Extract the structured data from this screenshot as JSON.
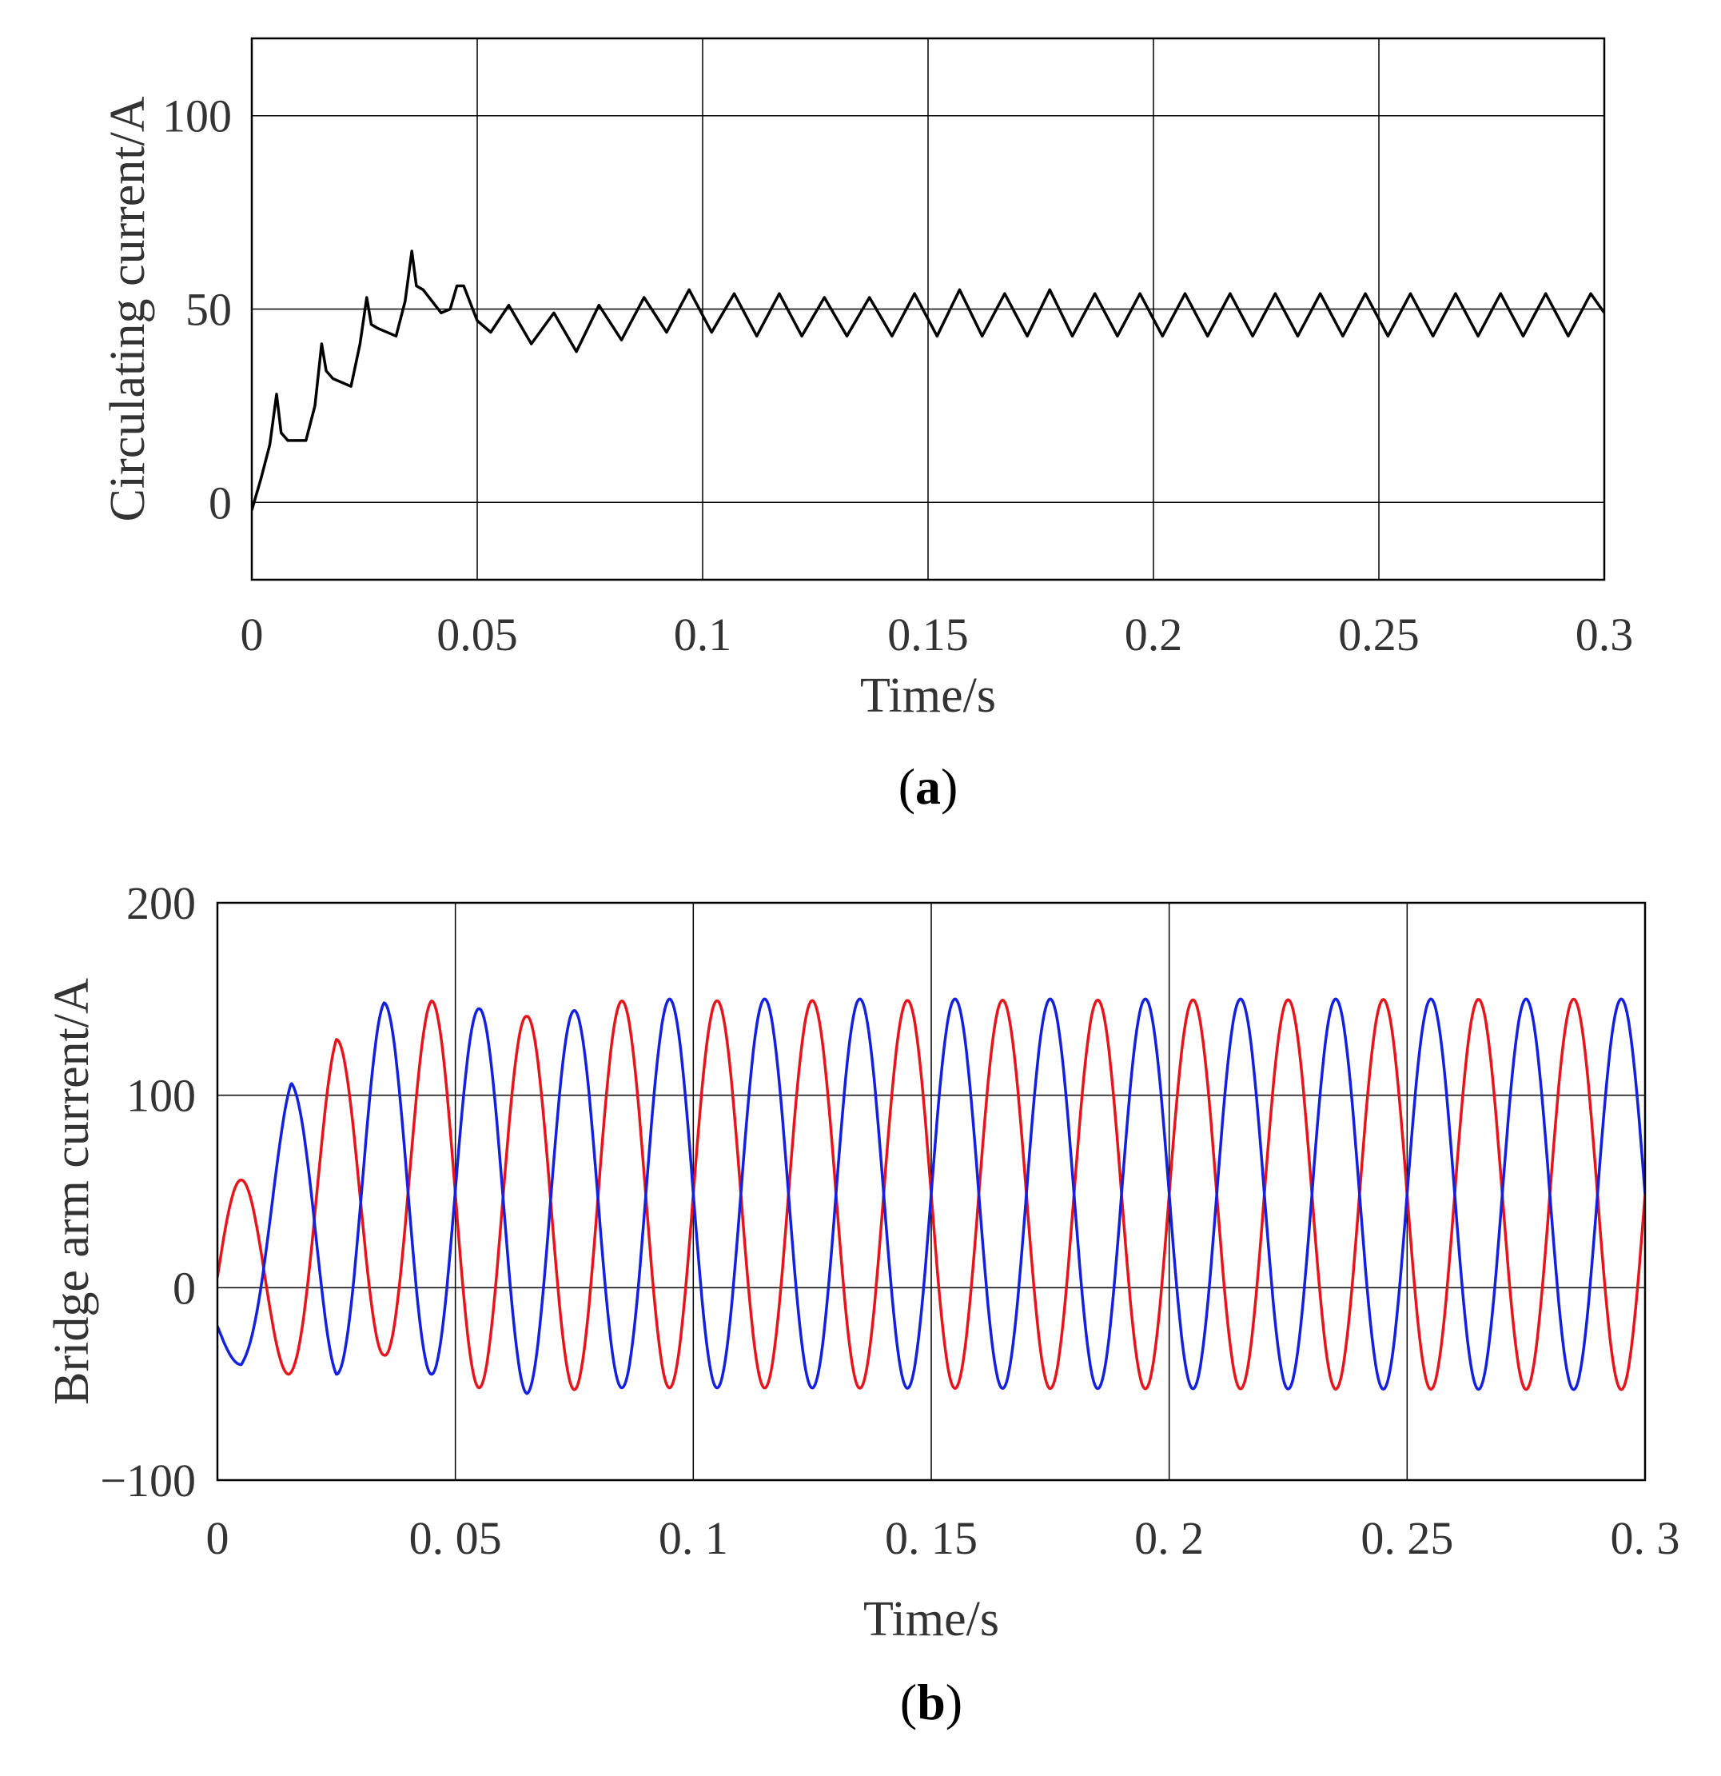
{
  "chart_data": [
    {
      "type": "line",
      "caption": {
        "open": "(",
        "letter": "a",
        "close": ")"
      },
      "xlabel": "Time/s",
      "ylabel": "Circulating current/A",
      "xlim": [
        0,
        0.3
      ],
      "ylim": [
        -20,
        120
      ],
      "xticks": [
        0,
        0.05,
        0.1,
        0.15,
        0.2,
        0.25,
        0.3
      ],
      "xtick_labels": [
        "0",
        "0.05",
        "0.1",
        "0.15",
        "0.2",
        "0.25",
        "0.3"
      ],
      "yticks": [
        0,
        50,
        100
      ],
      "ytick_labels": [
        "0",
        "50",
        "100"
      ],
      "grid": true,
      "series": [
        {
          "color": "#000000",
          "x": [
            0,
            0.002,
            0.004,
            0.0055,
            0.0065,
            0.008,
            0.012,
            0.014,
            0.0155,
            0.0165,
            0.018,
            0.022,
            0.024,
            0.0255,
            0.0265,
            0.028,
            0.032,
            0.034,
            0.0355,
            0.0365,
            0.038,
            0.042,
            0.044,
            0.0455,
            0.047,
            0.05,
            0.053,
            0.057,
            0.062,
            0.067,
            0.072,
            0.077,
            0.082,
            0.087,
            0.092,
            0.097,
            0.102,
            0.107,
            0.112,
            0.117,
            0.122,
            0.127,
            0.132,
            0.137,
            0.142,
            0.147,
            0.152,
            0.157,
            0.162,
            0.167,
            0.172,
            0.177,
            0.182,
            0.187,
            0.192,
            0.197,
            0.202,
            0.207,
            0.212,
            0.217,
            0.222,
            0.227,
            0.232,
            0.237,
            0.242,
            0.247,
            0.252,
            0.257,
            0.262,
            0.267,
            0.272,
            0.277,
            0.282,
            0.287,
            0.292,
            0.297,
            0.3
          ],
          "y": [
            -2,
            6,
            15,
            28,
            18,
            16,
            16,
            25,
            41,
            34,
            32,
            30,
            41,
            53,
            46,
            45,
            43,
            52,
            65,
            56,
            55,
            49,
            50,
            56,
            56,
            47,
            44,
            51,
            41,
            49,
            39,
            51,
            42,
            53,
            44,
            55,
            44,
            54,
            43,
            54,
            43,
            53,
            43,
            53,
            43,
            54,
            43,
            55,
            43,
            54,
            43,
            55,
            43,
            54,
            43,
            54,
            43,
            54,
            43,
            54,
            43,
            54,
            43,
            54,
            43,
            54,
            43,
            54,
            43,
            54,
            43,
            54,
            43,
            54,
            43,
            54,
            49
          ]
        }
      ]
    },
    {
      "type": "line",
      "caption": {
        "open": "(",
        "letter": "b",
        "close": ")"
      },
      "xlabel": "Time/s",
      "ylabel": "Bridge arm current/A",
      "xlim": [
        0,
        0.3
      ],
      "ylim": [
        -100,
        200
      ],
      "xticks": [
        0,
        0.05,
        0.1,
        0.15,
        0.2,
        0.25,
        0.3
      ],
      "xtick_labels": [
        "0",
        "0. 05",
        "0. 1",
        "0. 15",
        "0. 2",
        "0. 25",
        "0. 3"
      ],
      "yticks": [
        -100,
        0,
        100,
        200
      ],
      "ytick_labels": [
        "−100",
        "0",
        "100",
        "200"
      ],
      "grid": true,
      "frequency_hz": 50,
      "series": [
        {
          "color": "#e8141c",
          "amplitude": 100,
          "offset": 50,
          "envelope_x": [
            0,
            0.015,
            0.025,
            0.035,
            0.045,
            0.055,
            0.065,
            0.075,
            0.085,
            0.3
          ],
          "envelope_min": [
            -45,
            -45,
            -35,
            -35,
            -52,
            -52,
            -52,
            -53,
            -52,
            -53
          ],
          "envelope_max": [
            56,
            56,
            129,
            129,
            149,
            149,
            141,
            148,
            149,
            150
          ]
        },
        {
          "color": "#1420e0",
          "amplitude": 100,
          "offset": 50,
          "envelope_x": [
            0,
            0.005,
            0.0155,
            0.025,
            0.035,
            0.045,
            0.055,
            0.065,
            0.075,
            0.085,
            0.095,
            0.3
          ],
          "envelope_min": [
            -40,
            -40,
            0,
            -45,
            -45,
            -45,
            -45,
            -55,
            -55,
            -52,
            -52,
            -53
          ],
          "envelope_max": [
            0,
            0,
            107,
            107,
            148,
            148,
            145,
            145,
            144,
            144,
            150,
            150
          ]
        }
      ]
    }
  ]
}
